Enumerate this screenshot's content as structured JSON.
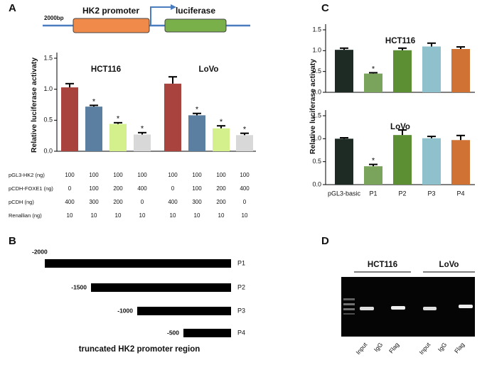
{
  "panel_labels": [
    "A",
    "B",
    "C",
    "D"
  ],
  "promoter_diagram": {
    "start": "2000bp",
    "promoter": "HK2 promoter",
    "reporter": "luciferase"
  },
  "chart_data": [
    {
      "type": "bar",
      "ylabel": "Relative luciferase activaty",
      "ylim": [
        0,
        1.5
      ],
      "yticks": [
        {
          "value": 0,
          "label": "0.0"
        },
        0.5,
        {
          "value": 1,
          "label": "1.0"
        },
        1.5
      ],
      "colors": [
        "#a8443d",
        "#5b7fa0",
        "#d4f08c",
        "#d8d8d8"
      ],
      "groups": [
        {
          "name": "HCT116",
          "values": [
            1.03,
            0.72,
            0.44,
            0.27
          ],
          "errors": [
            0.06,
            0.02,
            0.02,
            0.03
          ],
          "annotations": [
            null,
            "*",
            "*",
            "*"
          ]
        },
        {
          "name": "LoVo",
          "values": [
            1.09,
            0.58,
            0.37,
            0.26
          ],
          "errors": [
            0.11,
            0.03,
            0.04,
            0.03
          ],
          "annotations": [
            null,
            "*",
            "*",
            "*"
          ]
        }
      ]
    },
    {
      "type": "bar",
      "title": "HCT116",
      "ylabel": "Relative luciferase activaty",
      "ylim": [
        0,
        1.5
      ],
      "yticks": [
        {
          "value": 0,
          "label": "0.0"
        },
        0.5,
        {
          "value": 1,
          "label": "1.0"
        },
        1.5
      ],
      "categories": [
        null,
        null,
        null,
        null,
        null
      ],
      "colors": [
        "#1e2b24",
        "#7aa35c",
        "#5c8f33",
        "#8fc1cc",
        "#cf7233"
      ],
      "values": [
        1.02,
        0.45,
        1.01,
        1.1,
        1.04
      ],
      "errors": [
        0.04,
        0.02,
        0.05,
        0.08,
        0.05
      ],
      "annotations": [
        null,
        "*",
        null,
        null,
        null
      ]
    },
    {
      "type": "bar",
      "title": "LoVo",
      "ylim": [
        0,
        1.5
      ],
      "yticks": [
        {
          "value": 0,
          "label": "0.0"
        },
        0.5,
        {
          "value": 1,
          "label": "1.0"
        },
        1.5
      ],
      "categories": [
        "pGL3-basic",
        "P1",
        "P2",
        "P3",
        "P4"
      ],
      "colors": [
        "#1e2b24",
        "#7aa35c",
        "#5c8f33",
        "#8fc1cc",
        "#cf7233"
      ],
      "values": [
        1.0,
        0.4,
        1.08,
        1.01,
        0.97
      ],
      "errors": [
        0.02,
        0.04,
        0.11,
        0.04,
        0.1
      ],
      "annotations": [
        null,
        "*",
        null,
        null,
        null
      ]
    }
  ],
  "treatment_table": {
    "rows": [
      {
        "label": "pGL3-HK2 (ng)",
        "values": [
          100,
          100,
          100,
          100,
          100,
          100,
          100,
          100
        ]
      },
      {
        "label": "pCDH-FOXE1 (ng)",
        "values": [
          0,
          100,
          200,
          400,
          0,
          100,
          200,
          400
        ]
      },
      {
        "label": "pCDH (ng)",
        "values": [
          400,
          300,
          200,
          0,
          400,
          300,
          200,
          0
        ]
      },
      {
        "label": "Renallian (ng)",
        "values": [
          10,
          10,
          10,
          10,
          10,
          10,
          10,
          10
        ]
      }
    ]
  },
  "truncations": {
    "caption": "truncated HK2 promoter region",
    "fragments": [
      {
        "start": -2000,
        "name": "P1"
      },
      {
        "start": -1500,
        "name": "P2"
      },
      {
        "start": -1000,
        "name": "P3"
      },
      {
        "start": -500,
        "name": "P4"
      }
    ]
  },
  "gel": {
    "groups": [
      "HCT116",
      "LoVo"
    ],
    "lanes": [
      "Input",
      "IgG",
      "Flag",
      "Input",
      "IgG",
      "Flag"
    ]
  }
}
